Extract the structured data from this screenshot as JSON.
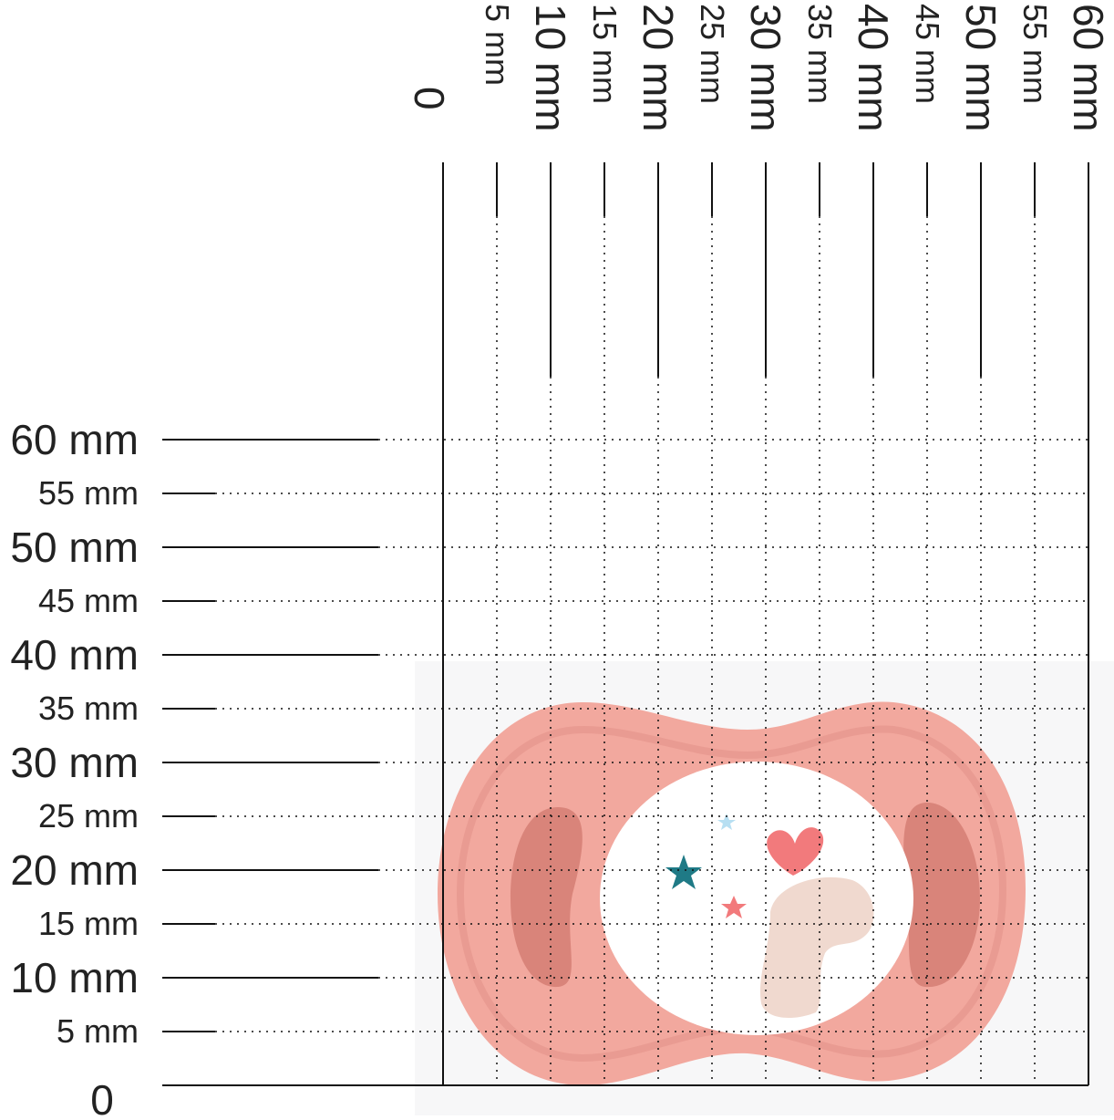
{
  "ruler": {
    "unit": "mm",
    "zero_label": "0",
    "x_labels": [
      "5 mm",
      "10 mm",
      "15 mm",
      "20 mm",
      "25 mm",
      "30 mm",
      "35 mm",
      "40 mm",
      "45 mm",
      "50 mm",
      "55 mm",
      "60 mm"
    ],
    "y_labels": [
      "5 mm",
      "10 mm",
      "15 mm",
      "20 mm",
      "25 mm",
      "30 mm",
      "35 mm",
      "40 mm",
      "45 mm",
      "50 mm",
      "55 mm",
      "60 mm"
    ],
    "x_values": [
      5,
      10,
      15,
      20,
      25,
      30,
      35,
      40,
      45,
      50,
      55,
      60
    ],
    "y_values": [
      5,
      10,
      15,
      20,
      25,
      30,
      35,
      40,
      45,
      50,
      55,
      60
    ],
    "grid": "dotted",
    "line_color": "#111111"
  },
  "photo": {
    "subject": "pacifier",
    "colors": {
      "shield": "#f2a89e",
      "shield_dark": "#d9847a",
      "button": "#ffffff",
      "heart": "#f27a7c",
      "star_teal": "#1f7a86",
      "star_pink": "#f27a7c",
      "star_light": "#b7dff2",
      "bunny": "#f0d9cf"
    }
  }
}
